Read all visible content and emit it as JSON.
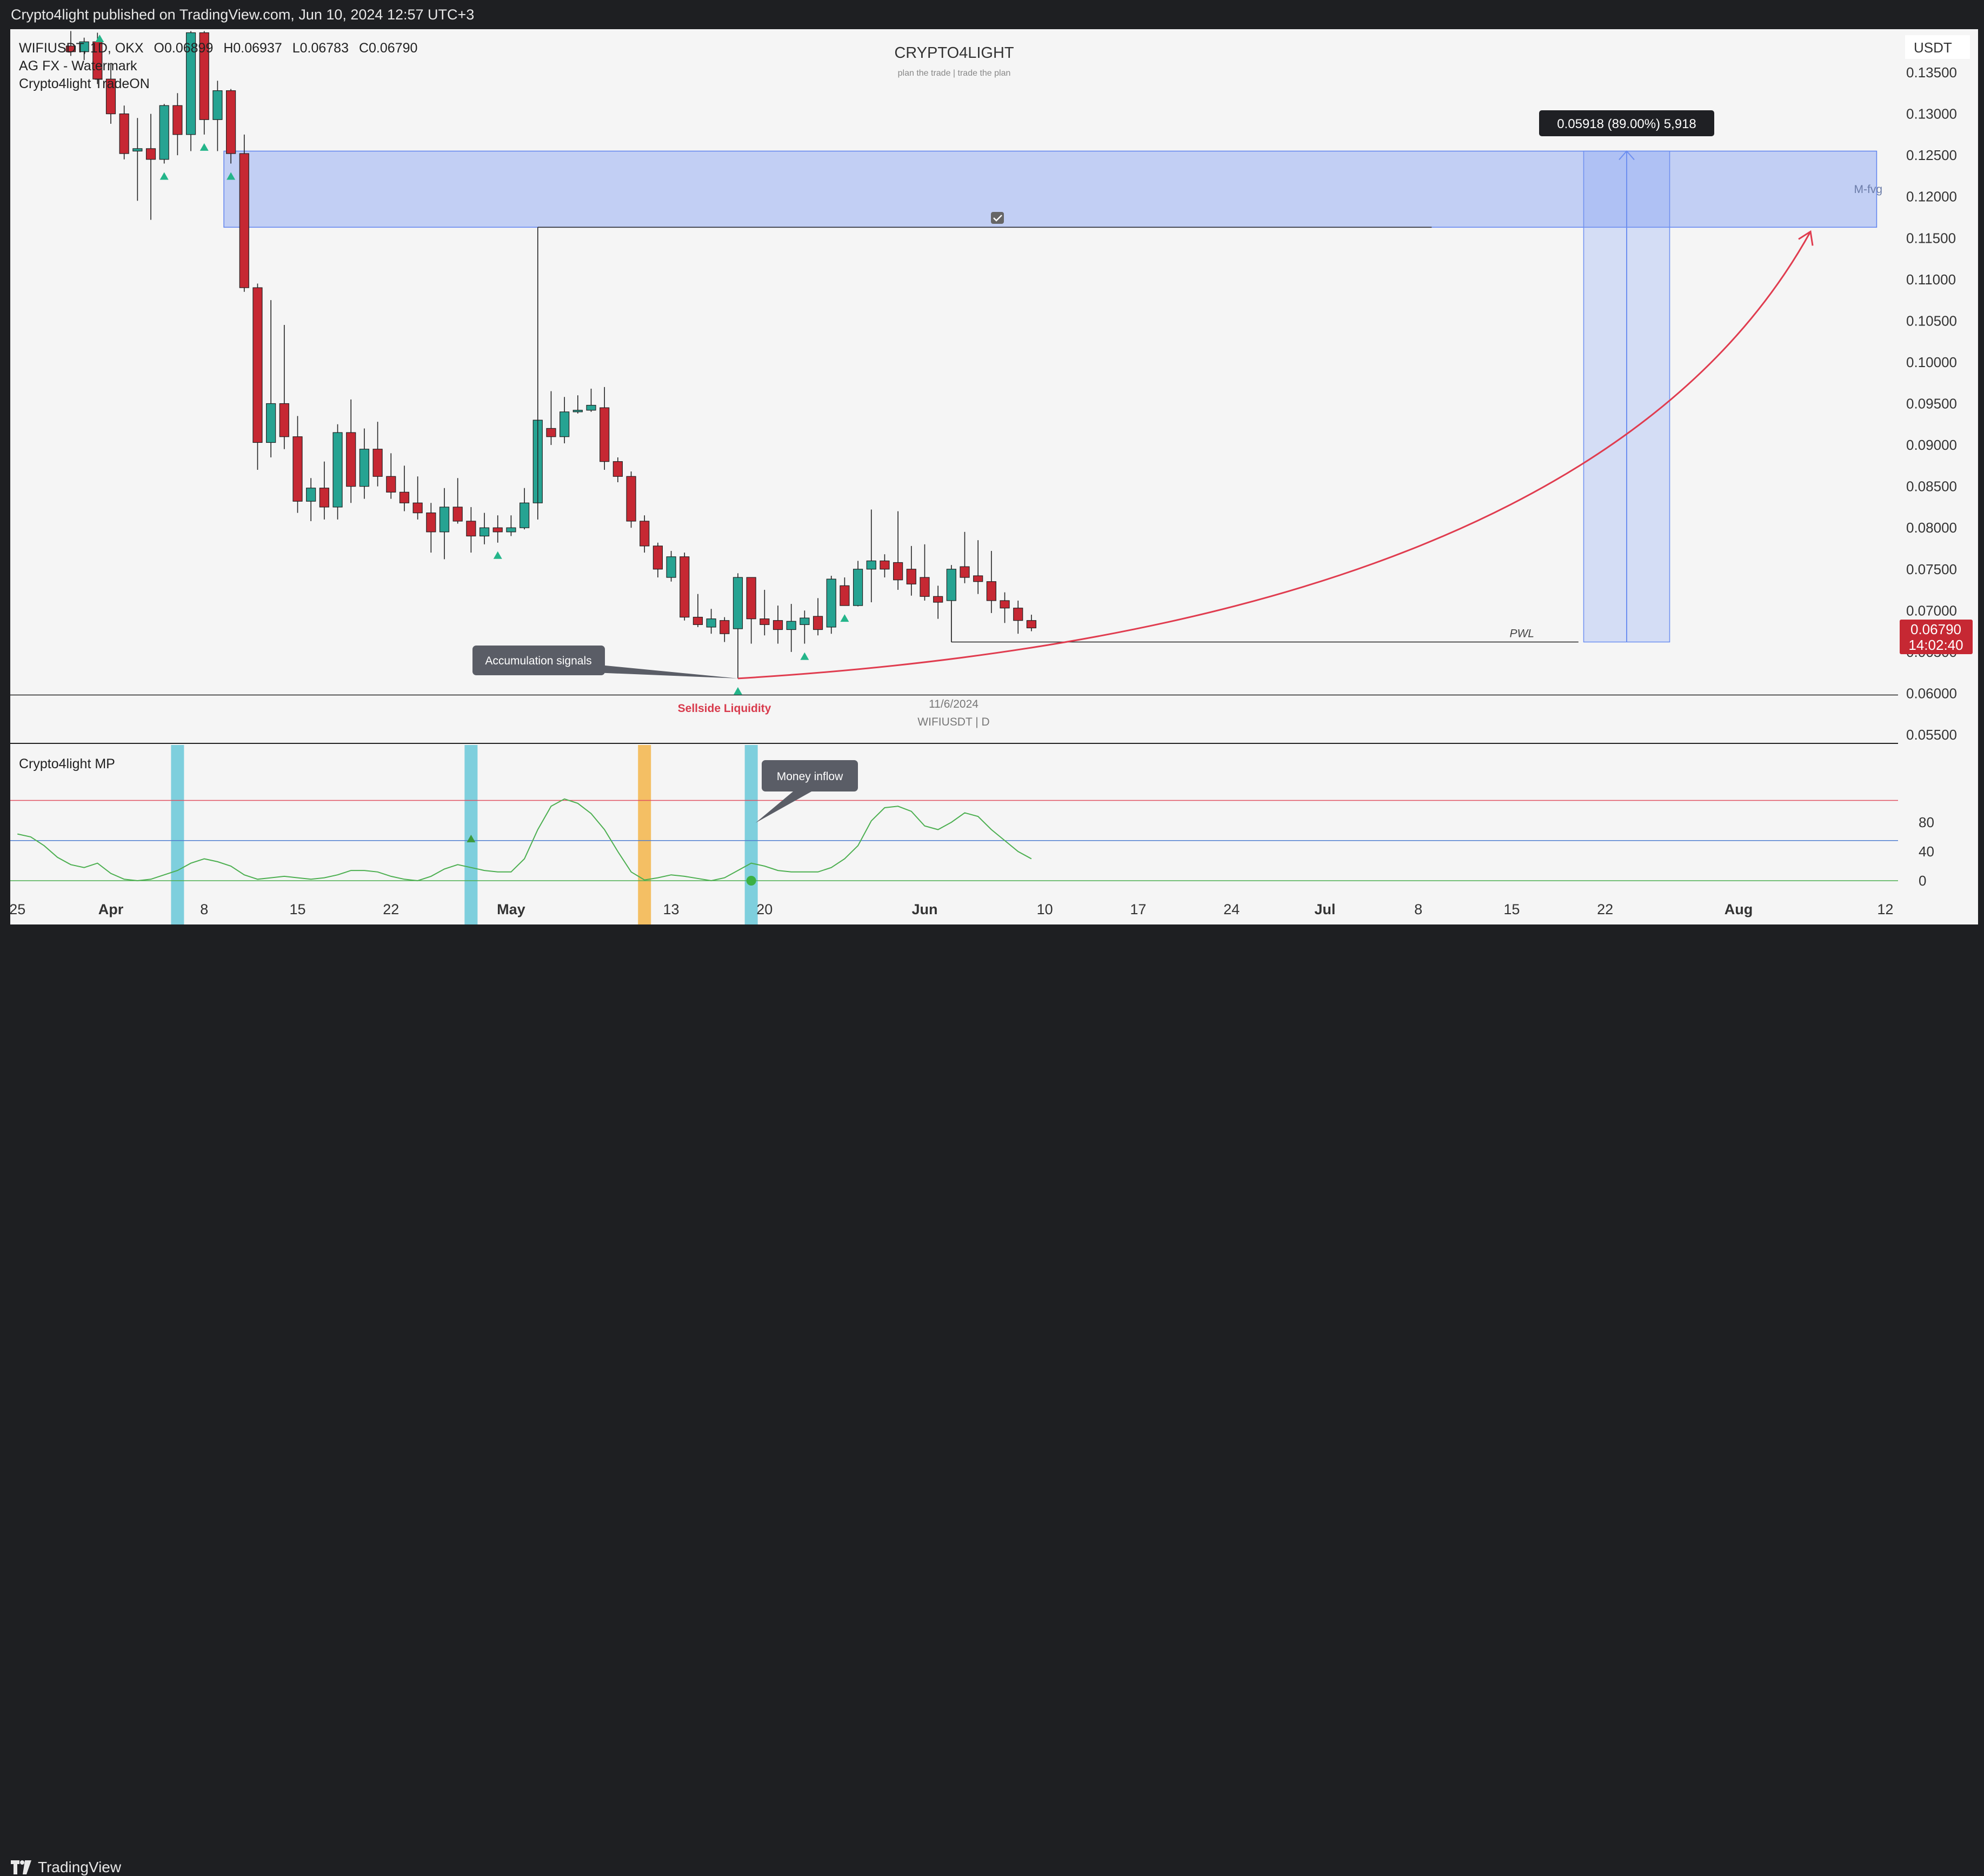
{
  "header": {
    "publish_text": "Crypto4light published on TradingView.com, Jun 10, 2024 12:57 UTC+3"
  },
  "legend": {
    "symbol_line": "WIFIUSDT, 1D, OKX",
    "open_label": "O",
    "open": "0.06899",
    "high_label": "H",
    "high": "0.06937",
    "low_label": "L",
    "low": "0.06783",
    "close_label": "C",
    "close": "0.06790",
    "indicator_1": "AG FX - Watermark",
    "indicator_2": "Crypto4light TradeON"
  },
  "watermark": {
    "title": "CRYPTO4LIGHT",
    "subtitle": "plan the trade | trade the plan"
  },
  "currency": "USDT",
  "annotations": {
    "measure_label": "0.05918 (89.00%) 5,918",
    "mfvg_label": "M-fvg",
    "pwl_label": "PWL",
    "accumulation_label": "Accumulation signals",
    "sellside_label": "Sellside Liquidity",
    "date_label": "11/6/2024",
    "symbol_tf_label": "WIFIUSDT | D",
    "money_inflow_label": "Money inflow",
    "oscillator_title": "Crypto4light MP"
  },
  "price_tag": {
    "price": "0.06790",
    "countdown": "14:02:40",
    "color": "#c62833"
  },
  "colors": {
    "up": "#26a392",
    "down": "#c62833",
    "zone": "#7b9bf3",
    "curve": "#e03c4f",
    "osc_line": "#4caf50"
  },
  "chart_data": {
    "type": "candlestick",
    "y_ticks": [
      "0.13500",
      "0.13000",
      "0.12500",
      "0.12000",
      "0.11500",
      "0.11000",
      "0.10500",
      "0.10000",
      "0.09500",
      "0.09000",
      "0.08500",
      "0.08000",
      "0.07500",
      "0.07000",
      "0.06500",
      "0.06000",
      "0.05500"
    ],
    "y_tick_values": [
      0.135,
      0.13,
      0.125,
      0.12,
      0.115,
      0.11,
      0.105,
      0.1,
      0.095,
      0.09,
      0.085,
      0.08,
      0.075,
      0.07,
      0.065,
      0.06,
      0.055
    ],
    "x_ticks": [
      "25",
      "Apr",
      "8",
      "15",
      "22",
      "May",
      "13",
      "20",
      "Jun",
      "10",
      "17",
      "24",
      "Jul",
      "8",
      "15",
      "22",
      "Aug",
      "12"
    ],
    "x_tick_days": [
      -7,
      0,
      7,
      14,
      21,
      30,
      42,
      49,
      61,
      70,
      77,
      84,
      91,
      98,
      105,
      112,
      122,
      133
    ],
    "osc_ticks": [
      "80",
      "40",
      "0"
    ],
    "osc_tick_values": [
      80,
      40,
      0
    ],
    "candles": [
      {
        "d": -3,
        "o": 0.1382,
        "h": 0.14,
        "l": 0.137,
        "c": 0.1375
      },
      {
        "d": -2,
        "o": 0.1375,
        "h": 0.1392,
        "l": 0.1365,
        "c": 0.1387
      },
      {
        "d": -1,
        "o": 0.1387,
        "h": 0.1398,
        "l": 0.1336,
        "c": 0.1342
      },
      {
        "d": 0,
        "o": 0.1342,
        "h": 0.136,
        "l": 0.1288,
        "c": 0.13
      },
      {
        "d": 1,
        "o": 0.13,
        "h": 0.131,
        "l": 0.1245,
        "c": 0.1252
      },
      {
        "d": 2,
        "o": 0.1255,
        "h": 0.1295,
        "l": 0.1195,
        "c": 0.1258
      },
      {
        "d": 3,
        "o": 0.1258,
        "h": 0.13,
        "l": 0.1172,
        "c": 0.1245
      },
      {
        "d": 4,
        "o": 0.1245,
        "h": 0.1312,
        "l": 0.124,
        "c": 0.131
      },
      {
        "d": 5,
        "o": 0.131,
        "h": 0.1325,
        "l": 0.125,
        "c": 0.1275
      },
      {
        "d": 6,
        "o": 0.1275,
        "h": 0.14,
        "l": 0.1255,
        "c": 0.1398
      },
      {
        "d": 7,
        "o": 0.1398,
        "h": 0.14,
        "l": 0.1275,
        "c": 0.1293
      },
      {
        "d": 8,
        "o": 0.1293,
        "h": 0.134,
        "l": 0.1255,
        "c": 0.1328
      },
      {
        "d": 9,
        "o": 0.1328,
        "h": 0.133,
        "l": 0.124,
        "c": 0.1252
      },
      {
        "d": 10,
        "o": 0.1252,
        "h": 0.1275,
        "l": 0.1085,
        "c": 0.109
      },
      {
        "d": 11,
        "o": 0.109,
        "h": 0.1095,
        "l": 0.087,
        "c": 0.0903
      },
      {
        "d": 12,
        "o": 0.0903,
        "h": 0.1075,
        "l": 0.0885,
        "c": 0.095
      },
      {
        "d": 13,
        "o": 0.095,
        "h": 0.1045,
        "l": 0.0895,
        "c": 0.091
      },
      {
        "d": 14,
        "o": 0.091,
        "h": 0.0935,
        "l": 0.0818,
        "c": 0.0832
      },
      {
        "d": 15,
        "o": 0.0832,
        "h": 0.086,
        "l": 0.0808,
        "c": 0.0848
      },
      {
        "d": 16,
        "o": 0.0848,
        "h": 0.088,
        "l": 0.081,
        "c": 0.0825
      },
      {
        "d": 17,
        "o": 0.0825,
        "h": 0.0925,
        "l": 0.081,
        "c": 0.0915
      },
      {
        "d": 18,
        "o": 0.0915,
        "h": 0.0955,
        "l": 0.083,
        "c": 0.085
      },
      {
        "d": 19,
        "o": 0.085,
        "h": 0.092,
        "l": 0.0835,
        "c": 0.0895
      },
      {
        "d": 20,
        "o": 0.0895,
        "h": 0.0928,
        "l": 0.085,
        "c": 0.0862
      },
      {
        "d": 21,
        "o": 0.0862,
        "h": 0.089,
        "l": 0.0835,
        "c": 0.0843
      },
      {
        "d": 22,
        "o": 0.0843,
        "h": 0.0875,
        "l": 0.082,
        "c": 0.083
      },
      {
        "d": 23,
        "o": 0.083,
        "h": 0.0862,
        "l": 0.081,
        "c": 0.0818
      },
      {
        "d": 24,
        "o": 0.0818,
        "h": 0.083,
        "l": 0.077,
        "c": 0.0795
      },
      {
        "d": 25,
        "o": 0.0795,
        "h": 0.0848,
        "l": 0.0762,
        "c": 0.0825
      },
      {
        "d": 26,
        "o": 0.0825,
        "h": 0.086,
        "l": 0.0805,
        "c": 0.0808
      },
      {
        "d": 27,
        "o": 0.0808,
        "h": 0.0825,
        "l": 0.077,
        "c": 0.079
      },
      {
        "d": 28,
        "o": 0.079,
        "h": 0.0818,
        "l": 0.078,
        "c": 0.08
      },
      {
        "d": 29,
        "o": 0.08,
        "h": 0.0815,
        "l": 0.0782,
        "c": 0.0795
      },
      {
        "d": 30,
        "o": 0.0795,
        "h": 0.0815,
        "l": 0.079,
        "c": 0.08
      },
      {
        "d": 31,
        "o": 0.08,
        "h": 0.0848,
        "l": 0.0798,
        "c": 0.083
      },
      {
        "d": 32,
        "o": 0.083,
        "h": 0.1163,
        "l": 0.081,
        "c": 0.093
      },
      {
        "d": 33,
        "o": 0.092,
        "h": 0.0965,
        "l": 0.09,
        "c": 0.091
      },
      {
        "d": 34,
        "o": 0.091,
        "h": 0.0958,
        "l": 0.0902,
        "c": 0.094
      },
      {
        "d": 35,
        "o": 0.094,
        "h": 0.096,
        "l": 0.0938,
        "c": 0.0942
      },
      {
        "d": 36,
        "o": 0.0942,
        "h": 0.0968,
        "l": 0.094,
        "c": 0.0948
      },
      {
        "d": 37,
        "o": 0.0945,
        "h": 0.097,
        "l": 0.087,
        "c": 0.088
      },
      {
        "d": 38,
        "o": 0.088,
        "h": 0.0885,
        "l": 0.0855,
        "c": 0.0862
      },
      {
        "d": 39,
        "o": 0.0862,
        "h": 0.0868,
        "l": 0.08,
        "c": 0.0808
      },
      {
        "d": 40,
        "o": 0.0808,
        "h": 0.0815,
        "l": 0.077,
        "c": 0.0778
      },
      {
        "d": 41,
        "o": 0.0778,
        "h": 0.0782,
        "l": 0.074,
        "c": 0.075
      },
      {
        "d": 42,
        "o": 0.074,
        "h": 0.0772,
        "l": 0.0735,
        "c": 0.0765
      },
      {
        "d": 43,
        "o": 0.0765,
        "h": 0.077,
        "l": 0.0688,
        "c": 0.0692
      },
      {
        "d": 44,
        "o": 0.0692,
        "h": 0.072,
        "l": 0.068,
        "c": 0.0683
      },
      {
        "d": 45,
        "o": 0.068,
        "h": 0.0702,
        "l": 0.0672,
        "c": 0.069
      },
      {
        "d": 46,
        "o": 0.0688,
        "h": 0.0692,
        "l": 0.0662,
        "c": 0.0672
      },
      {
        "d": 47,
        "o": 0.0678,
        "h": 0.0745,
        "l": 0.0618,
        "c": 0.074
      },
      {
        "d": 48,
        "o": 0.074,
        "h": 0.074,
        "l": 0.066,
        "c": 0.069
      },
      {
        "d": 49,
        "o": 0.069,
        "h": 0.0725,
        "l": 0.067,
        "c": 0.0683
      },
      {
        "d": 50,
        "o": 0.0688,
        "h": 0.0706,
        "l": 0.066,
        "c": 0.0677
      },
      {
        "d": 51,
        "o": 0.0677,
        "h": 0.0708,
        "l": 0.065,
        "c": 0.0687
      },
      {
        "d": 52,
        "o": 0.0683,
        "h": 0.07,
        "l": 0.066,
        "c": 0.0691
      },
      {
        "d": 53,
        "o": 0.0693,
        "h": 0.0715,
        "l": 0.067,
        "c": 0.0677
      },
      {
        "d": 54,
        "o": 0.068,
        "h": 0.0742,
        "l": 0.0672,
        "c": 0.0738
      },
      {
        "d": 55,
        "o": 0.073,
        "h": 0.074,
        "l": 0.0706,
        "c": 0.0706
      },
      {
        "d": 56,
        "o": 0.0706,
        "h": 0.076,
        "l": 0.0705,
        "c": 0.075
      },
      {
        "d": 57,
        "o": 0.075,
        "h": 0.0822,
        "l": 0.071,
        "c": 0.076
      },
      {
        "d": 58,
        "o": 0.076,
        "h": 0.0768,
        "l": 0.074,
        "c": 0.075
      },
      {
        "d": 59,
        "o": 0.0758,
        "h": 0.082,
        "l": 0.0725,
        "c": 0.0737
      },
      {
        "d": 60,
        "o": 0.075,
        "h": 0.0778,
        "l": 0.0718,
        "c": 0.0732
      },
      {
        "d": 61,
        "o": 0.074,
        "h": 0.078,
        "l": 0.0712,
        "c": 0.0717
      },
      {
        "d": 62,
        "o": 0.0717,
        "h": 0.073,
        "l": 0.069,
        "c": 0.071
      },
      {
        "d": 63,
        "o": 0.0712,
        "h": 0.0755,
        "l": 0.0662,
        "c": 0.075
      },
      {
        "d": 64,
        "o": 0.0753,
        "h": 0.0795,
        "l": 0.0733,
        "c": 0.074
      },
      {
        "d": 65,
        "o": 0.0742,
        "h": 0.0785,
        "l": 0.072,
        "c": 0.0735
      },
      {
        "d": 66,
        "o": 0.0735,
        "h": 0.0772,
        "l": 0.0697,
        "c": 0.0712
      },
      {
        "d": 67,
        "o": 0.0712,
        "h": 0.0722,
        "l": 0.0685,
        "c": 0.0703
      },
      {
        "d": 68,
        "o": 0.0703,
        "h": 0.0712,
        "l": 0.0672,
        "c": 0.0688
      },
      {
        "d": 69,
        "o": 0.0688,
        "h": 0.0695,
        "l": 0.0675,
        "c": 0.0679
      }
    ],
    "up_signals_days": [
      4,
      7,
      9,
      29,
      47,
      52,
      55
    ],
    "fvg_zone": {
      "y1": 0.1163,
      "y2": 0.1255,
      "d1": 9,
      "d2": 133
    },
    "fvg_line": {
      "y": 0.1163,
      "d1": 32,
      "d2": 99
    },
    "pwl_line": {
      "y": 0.0662,
      "d1": 63,
      "d2": 110
    },
    "baseline": 0.0598,
    "measure": {
      "d1": 111,
      "d2": 114,
      "y1": 0.0662,
      "y2": 0.1255
    },
    "projection": {
      "d0": 47,
      "y0": 0.0618,
      "d1": 128,
      "y1": 0.1163
    },
    "osc_ref_lines": [
      {
        "v": 110,
        "color": "#e05060"
      },
      {
        "v": 55,
        "color": "#4f7fd0"
      },
      {
        "v": 0,
        "color": "#4caf50"
      }
    ],
    "osc_bars": [
      {
        "d": 5,
        "color": "#68c8d8"
      },
      {
        "d": 27,
        "color": "#68c8d8"
      },
      {
        "d": 40,
        "color": "#f3b54a"
      },
      {
        "d": 48,
        "color": "#68c8d8"
      }
    ],
    "osc_series": [
      [
        -7,
        64
      ],
      [
        -6,
        60
      ],
      [
        -5,
        48
      ],
      [
        -4,
        32
      ],
      [
        -3,
        22
      ],
      [
        -2,
        18
      ],
      [
        -1,
        24
      ],
      [
        0,
        10
      ],
      [
        1,
        2
      ],
      [
        2,
        0
      ],
      [
        3,
        2
      ],
      [
        4,
        8
      ],
      [
        5,
        14
      ],
      [
        6,
        24
      ],
      [
        7,
        30
      ],
      [
        8,
        26
      ],
      [
        9,
        20
      ],
      [
        10,
        8
      ],
      [
        11,
        2
      ],
      [
        12,
        4
      ],
      [
        13,
        6
      ],
      [
        14,
        4
      ],
      [
        15,
        2
      ],
      [
        16,
        4
      ],
      [
        17,
        8
      ],
      [
        18,
        14
      ],
      [
        19,
        14
      ],
      [
        20,
        12
      ],
      [
        21,
        6
      ],
      [
        22,
        2
      ],
      [
        23,
        0
      ],
      [
        24,
        6
      ],
      [
        25,
        16
      ],
      [
        26,
        22
      ],
      [
        27,
        18
      ],
      [
        28,
        14
      ],
      [
        29,
        12
      ],
      [
        30,
        12
      ],
      [
        31,
        30
      ],
      [
        32,
        70
      ],
      [
        33,
        102
      ],
      [
        34,
        112
      ],
      [
        35,
        106
      ],
      [
        36,
        92
      ],
      [
        37,
        70
      ],
      [
        38,
        40
      ],
      [
        39,
        12
      ],
      [
        40,
        1
      ],
      [
        41,
        4
      ],
      [
        42,
        8
      ],
      [
        43,
        6
      ],
      [
        44,
        3
      ],
      [
        45,
        0
      ],
      [
        46,
        4
      ],
      [
        47,
        14
      ],
      [
        48,
        24
      ],
      [
        49,
        20
      ],
      [
        50,
        14
      ],
      [
        51,
        12
      ],
      [
        52,
        12
      ],
      [
        53,
        12
      ],
      [
        54,
        18
      ],
      [
        55,
        30
      ],
      [
        56,
        48
      ],
      [
        57,
        82
      ],
      [
        58,
        100
      ],
      [
        59,
        102
      ],
      [
        60,
        95
      ],
      [
        61,
        75
      ],
      [
        62,
        70
      ],
      [
        63,
        80
      ],
      [
        64,
        93
      ],
      [
        65,
        88
      ],
      [
        66,
        70
      ],
      [
        67,
        55
      ],
      [
        68,
        40
      ],
      [
        69,
        30
      ]
    ],
    "osc_up_signal_day": 27,
    "osc_dot_day": 48
  }
}
